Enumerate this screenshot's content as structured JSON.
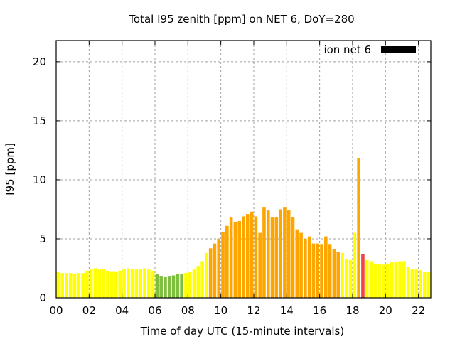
{
  "chart_data": {
    "type": "bar",
    "title": "Total I95 zenith [ppm] on NET 6, DoY=280",
    "xlabel": "Time of day UTC (15-minute intervals)",
    "ylabel": "I95 [ppm]",
    "xlim": [
      0,
      22.75
    ],
    "ylim": [
      0,
      21.8
    ],
    "grid": true,
    "legend": {
      "label": "ion net 6",
      "placement": "top-right",
      "color": "#000000"
    },
    "x_ticks": [
      {
        "value": 0,
        "label": "00"
      },
      {
        "value": 2,
        "label": "02"
      },
      {
        "value": 4,
        "label": "04"
      },
      {
        "value": 6,
        "label": "06"
      },
      {
        "value": 8,
        "label": "08"
      },
      {
        "value": 10,
        "label": "10"
      },
      {
        "value": 12,
        "label": "12"
      },
      {
        "value": 14,
        "label": "14"
      },
      {
        "value": 16,
        "label": "16"
      },
      {
        "value": 18,
        "label": "18"
      },
      {
        "value": 20,
        "label": "20"
      },
      {
        "value": 22,
        "label": "22"
      }
    ],
    "y_ticks": [
      {
        "value": 0,
        "label": "0"
      },
      {
        "value": 5,
        "label": "5"
      },
      {
        "value": 10,
        "label": "10"
      },
      {
        "value": 15,
        "label": "15"
      },
      {
        "value": 20,
        "label": "20"
      }
    ],
    "interval_hours": 0.25,
    "colors": {
      "g": "#7fbf3f",
      "y": "#ffff00",
      "o": "#ffa500",
      "r": "#ee4444"
    },
    "values": [
      2.2,
      2.1,
      2.1,
      2.1,
      2.05,
      2.1,
      2.1,
      2.3,
      2.4,
      2.5,
      2.4,
      2.4,
      2.3,
      2.25,
      2.25,
      2.3,
      2.4,
      2.5,
      2.4,
      2.4,
      2.4,
      2.5,
      2.4,
      2.3,
      2.0,
      1.8,
      1.75,
      1.8,
      1.9,
      2.0,
      2.0,
      2.1,
      2.2,
      2.4,
      2.7,
      3.1,
      3.8,
      4.2,
      4.6,
      5.0,
      5.6,
      6.1,
      6.8,
      6.4,
      6.5,
      6.9,
      7.1,
      7.3,
      6.9,
      5.5,
      7.7,
      7.4,
      6.8,
      6.8,
      7.5,
      7.7,
      7.4,
      6.8,
      5.8,
      5.5,
      5.0,
      5.2,
      4.6,
      4.6,
      4.5,
      5.2,
      4.5,
      4.1,
      3.9,
      3.8,
      3.3,
      3.2,
      5.5,
      11.8,
      3.7,
      3.2,
      3.1,
      2.9,
      2.9,
      2.8,
      2.9,
      3.0,
      3.05,
      3.1,
      3.1,
      2.6,
      2.4,
      2.4,
      2.35,
      2.2,
      2.2,
      2.25
    ],
    "bar_colors": "yyyyyyyyyyyyyyyyyyyyyyyygggggggyyyyyyooooooooooooooooooooooooooooooooyyyyoryyyyyyyyyyyyyyyyyy"
  }
}
